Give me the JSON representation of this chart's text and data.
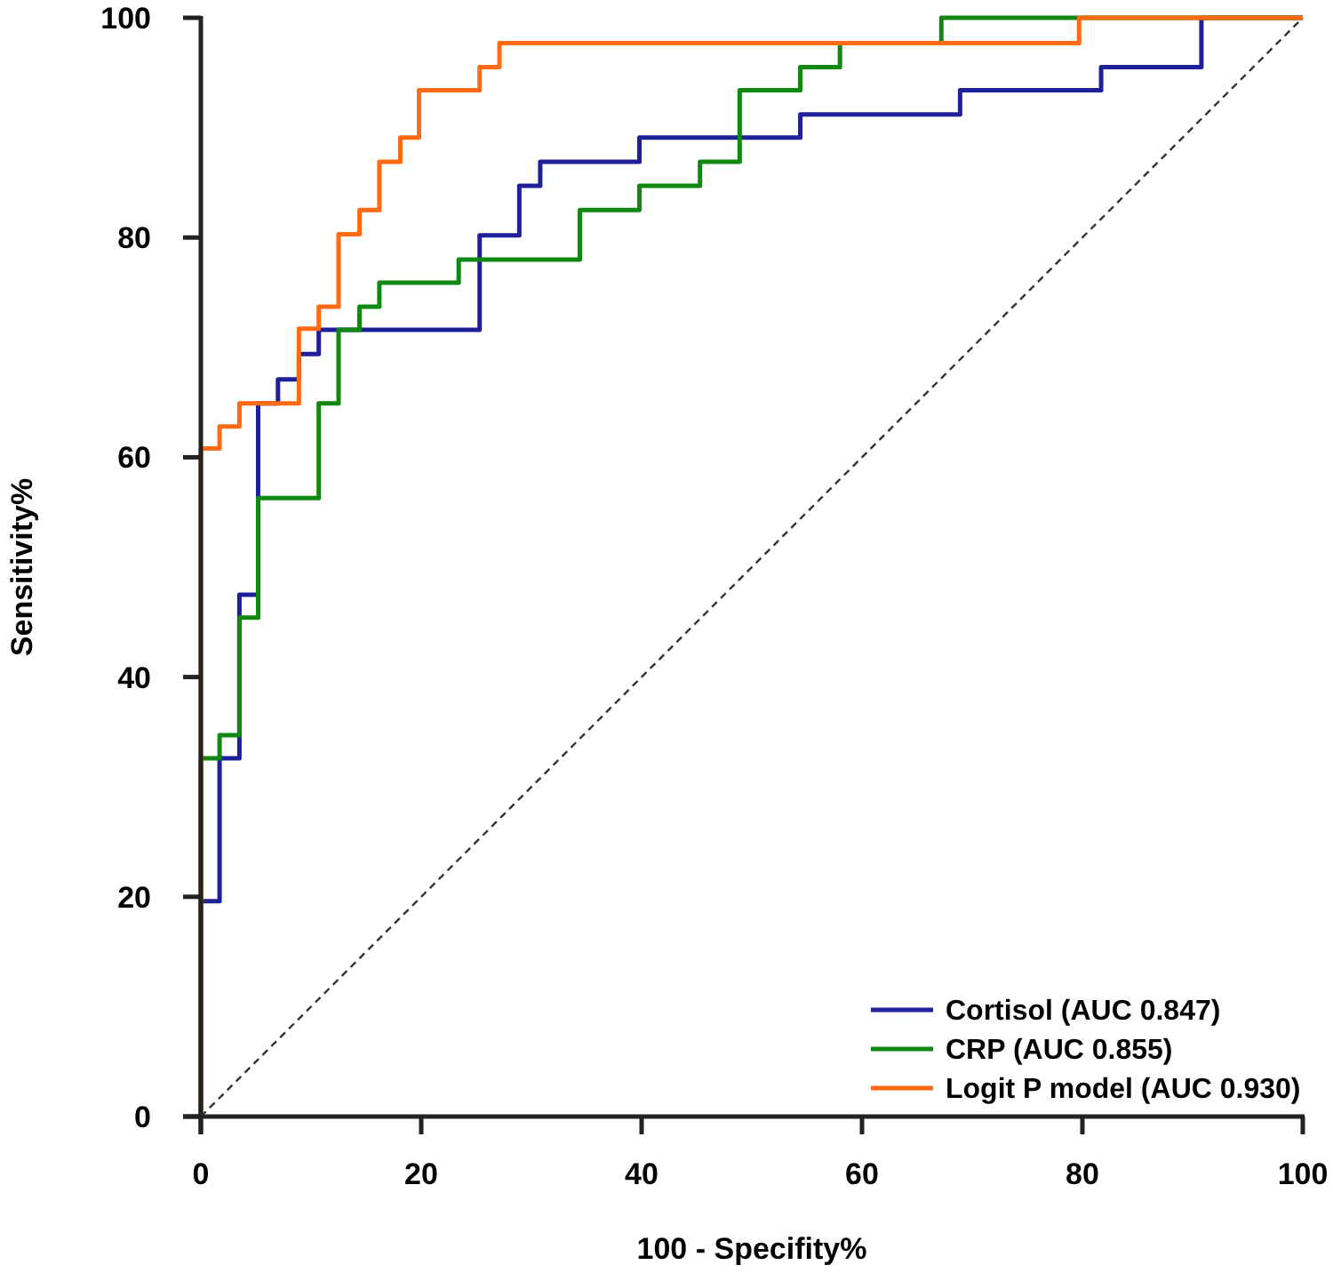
{
  "chart_data": {
    "type": "line",
    "xlabel": "100 - Specifity%",
    "ylabel": "Sensitivity%",
    "xlim": [
      0,
      100
    ],
    "ylim": [
      0,
      100
    ],
    "xticks": [
      0,
      20,
      40,
      60,
      80,
      100
    ],
    "yticks": [
      0,
      20,
      40,
      60,
      80,
      100
    ],
    "grid": false,
    "legend": "bottom right",
    "marker": "none",
    "series": [
      {
        "name": "Cortisol (AUC 0.847)",
        "color": "#1f1f99",
        "x": [
          0,
          0,
          1.7,
          1.7,
          3.5,
          3.5,
          5.2,
          5.2,
          7.0,
          7.0,
          8.9,
          8.9,
          10.7,
          10.7,
          25.3,
          25.3,
          28.9,
          28.9,
          30.8,
          30.8,
          39.8,
          39.8,
          54.4,
          54.4,
          68.9,
          68.9,
          81.7,
          81.7,
          90.8,
          90.8,
          100
        ],
        "values": [
          0,
          19.6,
          19.6,
          32.6,
          32.6,
          47.5,
          47.5,
          64.9,
          64.9,
          67.1,
          67.1,
          69.4,
          69.4,
          71.6,
          71.6,
          80.2,
          80.2,
          84.7,
          84.7,
          86.9,
          86.9,
          89.1,
          89.1,
          91.2,
          91.2,
          93.4,
          93.4,
          95.5,
          95.5,
          100,
          100
        ]
      },
      {
        "name": "CRP (AUC 0.855)",
        "color": "#118811",
        "x": [
          0,
          0,
          1.7,
          1.7,
          3.5,
          3.5,
          5.2,
          5.2,
          10.7,
          10.7,
          12.5,
          12.5,
          14.4,
          14.4,
          16.2,
          16.2,
          23.4,
          23.4,
          34.4,
          34.4,
          39.8,
          39.8,
          45.3,
          45.3,
          48.9,
          48.9,
          54.4,
          54.4,
          58.0,
          58.0,
          67.2,
          67.2,
          100
        ],
        "values": [
          0,
          32.6,
          32.6,
          34.7,
          34.7,
          45.4,
          45.4,
          56.3,
          56.3,
          64.9,
          64.9,
          71.6,
          71.6,
          73.7,
          73.7,
          75.9,
          75.9,
          78.0,
          78.0,
          82.5,
          82.5,
          84.7,
          84.7,
          86.9,
          86.9,
          93.4,
          93.4,
          95.5,
          95.5,
          97.7,
          97.7,
          100,
          100
        ]
      },
      {
        "name": "Logit P model (AUC 0.930)",
        "color": "#ff6a13",
        "x": [
          0,
          0,
          1.7,
          1.7,
          3.5,
          3.5,
          8.9,
          8.9,
          10.7,
          10.7,
          12.5,
          12.5,
          14.4,
          14.4,
          16.2,
          16.2,
          18.1,
          18.1,
          19.8,
          19.8,
          25.3,
          25.3,
          27.1,
          27.1,
          79.7,
          79.7,
          100
        ],
        "values": [
          0,
          60.8,
          60.8,
          62.8,
          62.8,
          64.9,
          64.9,
          71.7,
          71.7,
          73.7,
          73.7,
          80.3,
          80.3,
          82.5,
          82.5,
          86.9,
          86.9,
          89.1,
          89.1,
          93.4,
          93.4,
          95.5,
          95.5,
          97.7,
          97.7,
          100,
          100
        ]
      },
      {
        "color": "#333333",
        "line_style": "dashed",
        "x": [
          0,
          100
        ],
        "values": [
          0,
          100
        ]
      }
    ]
  }
}
